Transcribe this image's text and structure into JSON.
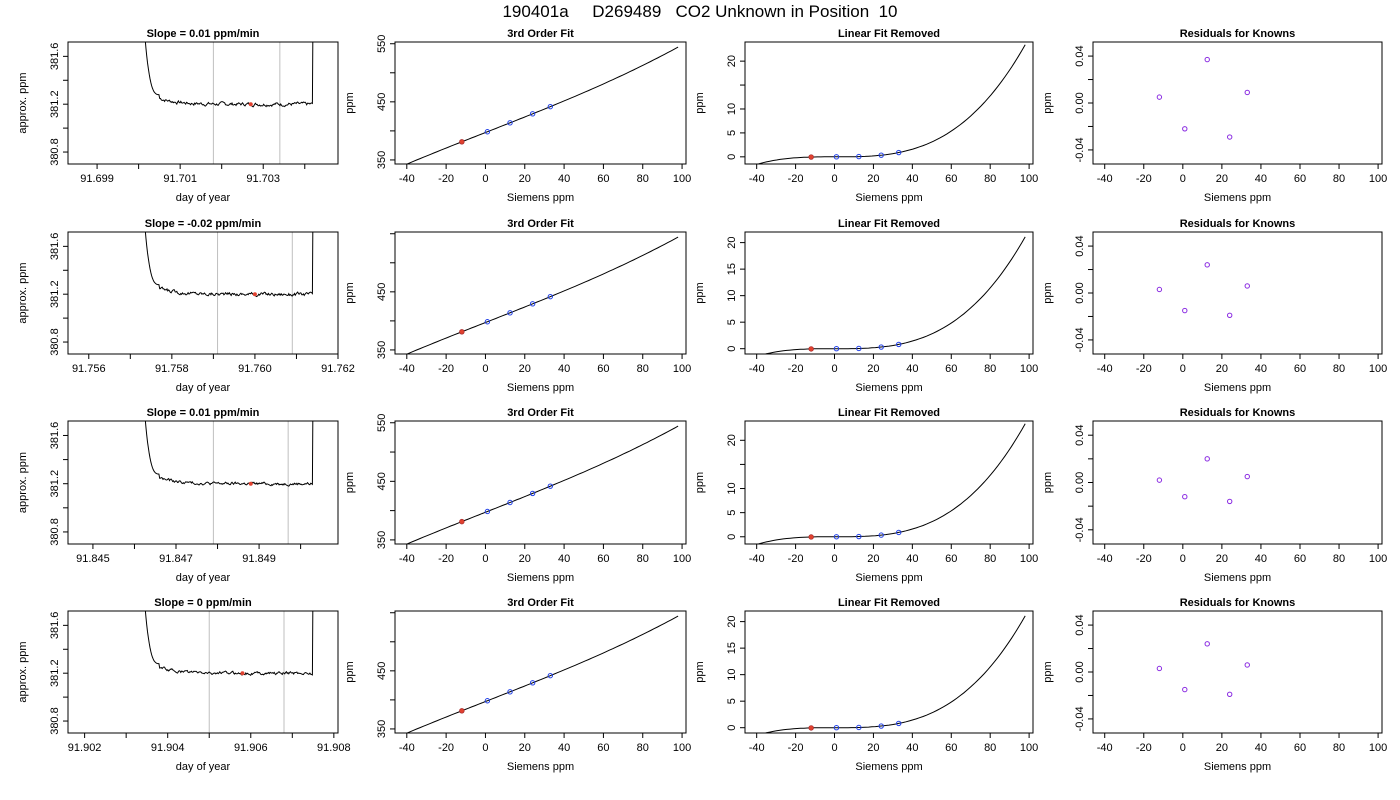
{
  "header": {
    "title": "190401a     D269489   CO2 Unknown in Position  10"
  },
  "colors": {
    "trace": "#000000",
    "vline": "#bfbfbf",
    "unknown_point": "#e0412f",
    "known_point": "#1f3fe8",
    "residual_point": "#8a2be2"
  },
  "chart_data": [
    {
      "type": "line",
      "panel": "time_series",
      "row": 1,
      "title": "Slope =  0.01  ppm/min",
      "xlabel": "day of year",
      "ylabel": "approx. ppm",
      "xlim": [
        91.6983,
        91.7048
      ],
      "ylim": [
        380.7,
        381.72
      ],
      "x_ticks": [
        91.699,
        91.7,
        91.701,
        91.702,
        91.703,
        91.704
      ],
      "x_tick_labels": [
        "91.699",
        "",
        "91.701",
        "",
        "91.703",
        ""
      ],
      "y_ticks": [
        380.8,
        381.0,
        381.2,
        381.4,
        381.6
      ],
      "y_tick_labels": [
        "380.8",
        "",
        "381.2",
        "",
        "381.6"
      ],
      "data_start": 91.7,
      "data_end": 91.7043,
      "rise_end": 91.7005,
      "fall_start": 91.7042,
      "baseline": 381.2,
      "noise": 0.012,
      "vlines": [
        91.7018,
        91.7034
      ],
      "marker": [
        91.7027,
        381.2
      ]
    },
    {
      "type": "line",
      "panel": "fit",
      "row": 1,
      "title": "3rd Order Fit",
      "xlabel": "Siemens ppm",
      "ylabel": "ppm",
      "xlim": [
        -46,
        102
      ],
      "ylim": [
        343,
        553
      ],
      "x_ticks": [
        -40,
        -20,
        0,
        20,
        40,
        60,
        80,
        100
      ],
      "x_tick_labels": [
        "-40",
        "-20",
        "0",
        "20",
        "40",
        "60",
        "80",
        "100"
      ],
      "y_ticks": [
        350,
        400,
        450,
        500,
        550
      ],
      "y_tick_labels": [
        "350",
        "",
        "450",
        "",
        "550"
      ],
      "curve_x": [
        -42,
        98
      ],
      "coef": [
        397.2,
        1.33,
        0,
        1.78e-05
      ],
      "known_x": [
        1,
        12.5,
        24,
        33
      ],
      "unknown_x": [
        -12
      ]
    },
    {
      "type": "line",
      "panel": "linear_removed",
      "row": 1,
      "title": "Linear Fit Removed",
      "xlabel": "Siemens ppm",
      "ylabel": "ppm",
      "xlim": [
        -46,
        102
      ],
      "ylim": [
        -1.5,
        24
      ],
      "x_ticks": [
        -40,
        -20,
        0,
        20,
        40,
        60,
        80,
        100
      ],
      "x_tick_labels": [
        "-40",
        "-20",
        "0",
        "20",
        "40",
        "60",
        "80",
        "100"
      ],
      "y_ticks": [
        0,
        5,
        10,
        15,
        20
      ],
      "y_tick_labels": [
        "0",
        "5",
        "10",
        "",
        "20"
      ],
      "curve_x": [
        -42,
        98
      ],
      "coef": [
        0,
        0,
        0,
        2.49e-05
      ],
      "known_x": [
        1,
        12.5,
        24,
        33
      ],
      "unknown_x": [
        -12
      ]
    },
    {
      "type": "scatter",
      "panel": "residuals",
      "row": 1,
      "title": "Residuals for Knowns",
      "xlabel": "Siemens ppm",
      "ylabel": "ppm",
      "xlim": [
        -46,
        102
      ],
      "ylim": [
        -0.052,
        0.052
      ],
      "x_ticks": [
        -40,
        -20,
        0,
        20,
        40,
        60,
        80,
        100
      ],
      "x_tick_labels": [
        "-40",
        "-20",
        "0",
        "20",
        "40",
        "60",
        "80",
        "100"
      ],
      "y_ticks": [
        -0.04,
        -0.02,
        0,
        0.02,
        0.04
      ],
      "y_tick_labels": [
        "-0.04",
        "",
        "0.00",
        "",
        "0.04"
      ],
      "points": [
        [
          -12,
          0.005
        ],
        [
          1,
          -0.022
        ],
        [
          12.5,
          0.037
        ],
        [
          24,
          -0.029
        ],
        [
          33,
          0.009
        ]
      ]
    },
    {
      "type": "line",
      "panel": "time_series",
      "row": 2,
      "title": "Slope =  -0.02  ppm/min",
      "xlabel": "day of year",
      "ylabel": "approx. ppm",
      "xlim": [
        91.7555,
        91.762
      ],
      "ylim": [
        380.7,
        381.72
      ],
      "x_ticks": [
        91.756,
        91.757,
        91.758,
        91.759,
        91.76,
        91.761,
        91.762
      ],
      "x_tick_labels": [
        "91.756",
        "",
        "91.758",
        "",
        "91.760",
        "",
        "91.762"
      ],
      "y_ticks": [
        380.8,
        381.0,
        381.2,
        381.4,
        381.6
      ],
      "y_tick_labels": [
        "380.8",
        "",
        "381.2",
        "",
        "381.6"
      ],
      "data_start": 91.7572,
      "data_end": 91.7615,
      "rise_end": 91.7577,
      "fall_start": 91.7614,
      "baseline": 381.2,
      "noise": 0.012,
      "vlines": [
        91.7591,
        91.7609
      ],
      "marker": [
        91.76,
        381.2
      ]
    },
    {
      "type": "line",
      "panel": "fit",
      "row": 2,
      "title": "3rd Order Fit",
      "xlabel": "Siemens ppm",
      "ylabel": "ppm",
      "xlim": [
        -46,
        102
      ],
      "ylim": [
        343,
        553
      ],
      "x_ticks": [
        -40,
        -20,
        0,
        20,
        40,
        60,
        80,
        100
      ],
      "x_tick_labels": [
        "-40",
        "-20",
        "0",
        "20",
        "40",
        "60",
        "80",
        "100"
      ],
      "y_ticks": [
        350,
        400,
        450,
        500,
        550
      ],
      "y_tick_labels": [
        "350",
        "",
        "450",
        "",
        ""
      ],
      "curve_x": [
        -42,
        98
      ],
      "coef": [
        397.2,
        1.33,
        0,
        1.78e-05
      ],
      "known_x": [
        1,
        12.5,
        24,
        33
      ],
      "unknown_x": [
        -12
      ]
    },
    {
      "type": "line",
      "panel": "linear_removed",
      "row": 2,
      "title": "Linear Fit Removed",
      "xlabel": "Siemens ppm",
      "ylabel": "ppm",
      "xlim": [
        -46,
        102
      ],
      "ylim": [
        -1,
        22
      ],
      "x_ticks": [
        -40,
        -20,
        0,
        20,
        40,
        60,
        80,
        100
      ],
      "x_tick_labels": [
        "-40",
        "-20",
        "0",
        "20",
        "40",
        "60",
        "80",
        "100"
      ],
      "y_ticks": [
        0,
        5,
        10,
        15,
        20
      ],
      "y_tick_labels": [
        "0",
        "5",
        "10",
        "15",
        "20"
      ],
      "curve_x": [
        -42,
        98
      ],
      "coef": [
        0,
        0,
        0,
        2.24e-05
      ],
      "known_x": [
        1,
        12.5,
        24,
        33
      ],
      "unknown_x": [
        -12
      ]
    },
    {
      "type": "scatter",
      "panel": "residuals",
      "row": 2,
      "title": "Residuals for Knowns",
      "xlabel": "Siemens ppm",
      "ylabel": "ppm",
      "xlim": [
        -46,
        102
      ],
      "ylim": [
        -0.052,
        0.052
      ],
      "x_ticks": [
        -40,
        -20,
        0,
        20,
        40,
        60,
        80,
        100
      ],
      "x_tick_labels": [
        "-40",
        "-20",
        "0",
        "20",
        "40",
        "60",
        "80",
        "100"
      ],
      "y_ticks": [
        -0.04,
        -0.02,
        0,
        0.02,
        0.04
      ],
      "y_tick_labels": [
        "-0.04",
        "",
        "0.00",
        "",
        "0.04"
      ],
      "points": [
        [
          -12,
          0.003
        ],
        [
          1,
          -0.015
        ],
        [
          12.5,
          0.024
        ],
        [
          24,
          -0.019
        ],
        [
          33,
          0.006
        ]
      ]
    },
    {
      "type": "line",
      "panel": "time_series",
      "row": 3,
      "title": "Slope =  0.01  ppm/min",
      "xlabel": "day of year",
      "ylabel": "approx. ppm",
      "xlim": [
        91.8444,
        91.8509
      ],
      "ylim": [
        380.7,
        381.72
      ],
      "x_ticks": [
        91.845,
        91.846,
        91.847,
        91.848,
        91.849,
        91.85
      ],
      "x_tick_labels": [
        "91.845",
        "",
        "91.847",
        "",
        "91.849",
        ""
      ],
      "y_ticks": [
        380.8,
        381.0,
        381.2,
        381.4,
        381.6
      ],
      "y_tick_labels": [
        "380.8",
        "",
        "381.2",
        "",
        "381.6"
      ],
      "data_start": 91.8461,
      "data_end": 91.8504,
      "rise_end": 91.8466,
      "fall_start": 91.8503,
      "baseline": 381.2,
      "noise": 0.01,
      "vlines": [
        91.8479,
        91.8497
      ],
      "marker": [
        91.8488,
        381.2
      ]
    },
    {
      "type": "line",
      "panel": "fit",
      "row": 3,
      "title": "3rd Order Fit",
      "xlabel": "Siemens ppm",
      "ylabel": "ppm",
      "xlim": [
        -46,
        102
      ],
      "ylim": [
        343,
        553
      ],
      "x_ticks": [
        -40,
        -20,
        0,
        20,
        40,
        60,
        80,
        100
      ],
      "x_tick_labels": [
        "-40",
        "-20",
        "0",
        "20",
        "40",
        "60",
        "80",
        "100"
      ],
      "y_ticks": [
        350,
        400,
        450,
        500,
        550
      ],
      "y_tick_labels": [
        "350",
        "",
        "450",
        "",
        "550"
      ],
      "curve_x": [
        -42,
        98
      ],
      "coef": [
        397.2,
        1.33,
        0,
        1.78e-05
      ],
      "known_x": [
        1,
        12.5,
        24,
        33
      ],
      "unknown_x": [
        -12
      ]
    },
    {
      "type": "line",
      "panel": "linear_removed",
      "row": 3,
      "title": "Linear Fit Removed",
      "xlabel": "Siemens ppm",
      "ylabel": "ppm",
      "xlim": [
        -46,
        102
      ],
      "ylim": [
        -1.5,
        24
      ],
      "x_ticks": [
        -40,
        -20,
        0,
        20,
        40,
        60,
        80,
        100
      ],
      "x_tick_labels": [
        "-40",
        "-20",
        "0",
        "20",
        "40",
        "60",
        "80",
        "100"
      ],
      "y_ticks": [
        0,
        5,
        10,
        15,
        20
      ],
      "y_tick_labels": [
        "0",
        "5",
        "10",
        "",
        "20"
      ],
      "curve_x": [
        -42,
        98
      ],
      "coef": [
        0,
        0,
        0,
        2.49e-05
      ],
      "known_x": [
        1,
        12.5,
        24,
        33
      ],
      "unknown_x": [
        -12
      ]
    },
    {
      "type": "scatter",
      "panel": "residuals",
      "row": 3,
      "title": "Residuals for Knowns",
      "xlabel": "Siemens ppm",
      "ylabel": "ppm",
      "xlim": [
        -46,
        102
      ],
      "ylim": [
        -0.052,
        0.052
      ],
      "x_ticks": [
        -40,
        -20,
        0,
        20,
        40,
        60,
        80,
        100
      ],
      "x_tick_labels": [
        "-40",
        "-20",
        "0",
        "20",
        "40",
        "60",
        "80",
        "100"
      ],
      "y_ticks": [
        -0.04,
        -0.02,
        0,
        0.02,
        0.04
      ],
      "y_tick_labels": [
        "-0.04",
        "",
        "0.00",
        "",
        "0.04"
      ],
      "points": [
        [
          -12,
          0.002
        ],
        [
          1,
          -0.012
        ],
        [
          12.5,
          0.02
        ],
        [
          24,
          -0.016
        ],
        [
          33,
          0.005
        ]
      ]
    },
    {
      "type": "line",
      "panel": "time_series",
      "row": 4,
      "title": "Slope =  0  ppm/min",
      "xlabel": "day of year",
      "ylabel": "approx. ppm",
      "xlim": [
        91.9016,
        91.9081
      ],
      "ylim": [
        380.7,
        381.72
      ],
      "x_ticks": [
        91.902,
        91.903,
        91.904,
        91.905,
        91.906,
        91.907,
        91.908
      ],
      "x_tick_labels": [
        "91.902",
        "",
        "91.904",
        "",
        "91.906",
        "",
        "91.908"
      ],
      "y_ticks": [
        380.8,
        381.0,
        381.2,
        381.4,
        381.6
      ],
      "y_tick_labels": [
        "380.8",
        "",
        "381.2",
        "",
        "381.6"
      ],
      "data_start": 91.9033,
      "data_end": 91.9076,
      "rise_end": 91.9038,
      "fall_start": 91.9075,
      "baseline": 381.2,
      "noise": 0.01,
      "vlines": [
        91.905,
        91.9068
      ],
      "marker": [
        91.9058,
        381.2
      ]
    },
    {
      "type": "line",
      "panel": "fit",
      "row": 4,
      "title": "3rd Order Fit",
      "xlabel": "Siemens ppm",
      "ylabel": "ppm",
      "xlim": [
        -46,
        102
      ],
      "ylim": [
        343,
        553
      ],
      "x_ticks": [
        -40,
        -20,
        0,
        20,
        40,
        60,
        80,
        100
      ],
      "x_tick_labels": [
        "-40",
        "-20",
        "0",
        "20",
        "40",
        "60",
        "80",
        "100"
      ],
      "y_ticks": [
        350,
        400,
        450,
        500,
        550
      ],
      "y_tick_labels": [
        "350",
        "",
        "450",
        "",
        ""
      ],
      "curve_x": [
        -42,
        98
      ],
      "coef": [
        397.2,
        1.33,
        0,
        1.78e-05
      ],
      "known_x": [
        1,
        12.5,
        24,
        33
      ],
      "unknown_x": [
        -12
      ]
    },
    {
      "type": "line",
      "panel": "linear_removed",
      "row": 4,
      "title": "Linear Fit Removed",
      "xlabel": "Siemens ppm",
      "ylabel": "ppm",
      "xlim": [
        -46,
        102
      ],
      "ylim": [
        -1,
        22
      ],
      "x_ticks": [
        -40,
        -20,
        0,
        20,
        40,
        60,
        80,
        100
      ],
      "x_tick_labels": [
        "-40",
        "-20",
        "0",
        "20",
        "40",
        "60",
        "80",
        "100"
      ],
      "y_ticks": [
        0,
        5,
        10,
        15,
        20
      ],
      "y_tick_labels": [
        "0",
        "5",
        "10",
        "15",
        "20"
      ],
      "curve_x": [
        -42,
        98
      ],
      "coef": [
        0,
        0,
        0,
        2.24e-05
      ],
      "known_x": [
        1,
        12.5,
        24,
        33
      ],
      "unknown_x": [
        -12
      ]
    },
    {
      "type": "scatter",
      "panel": "residuals",
      "row": 4,
      "title": "Residuals for Knowns",
      "xlabel": "Siemens ppm",
      "ylabel": "ppm",
      "xlim": [
        -46,
        102
      ],
      "ylim": [
        -0.052,
        0.052
      ],
      "x_ticks": [
        -40,
        -20,
        0,
        20,
        40,
        60,
        80,
        100
      ],
      "x_tick_labels": [
        "-40",
        "-20",
        "0",
        "20",
        "40",
        "60",
        "80",
        "100"
      ],
      "y_ticks": [
        -0.04,
        -0.02,
        0,
        0.02,
        0.04
      ],
      "y_tick_labels": [
        "-0.04",
        "",
        "0.00",
        "",
        "0.04"
      ],
      "points": [
        [
          -12,
          0.003
        ],
        [
          1,
          -0.015
        ],
        [
          12.5,
          0.024
        ],
        [
          24,
          -0.019
        ],
        [
          33,
          0.006
        ]
      ]
    }
  ]
}
